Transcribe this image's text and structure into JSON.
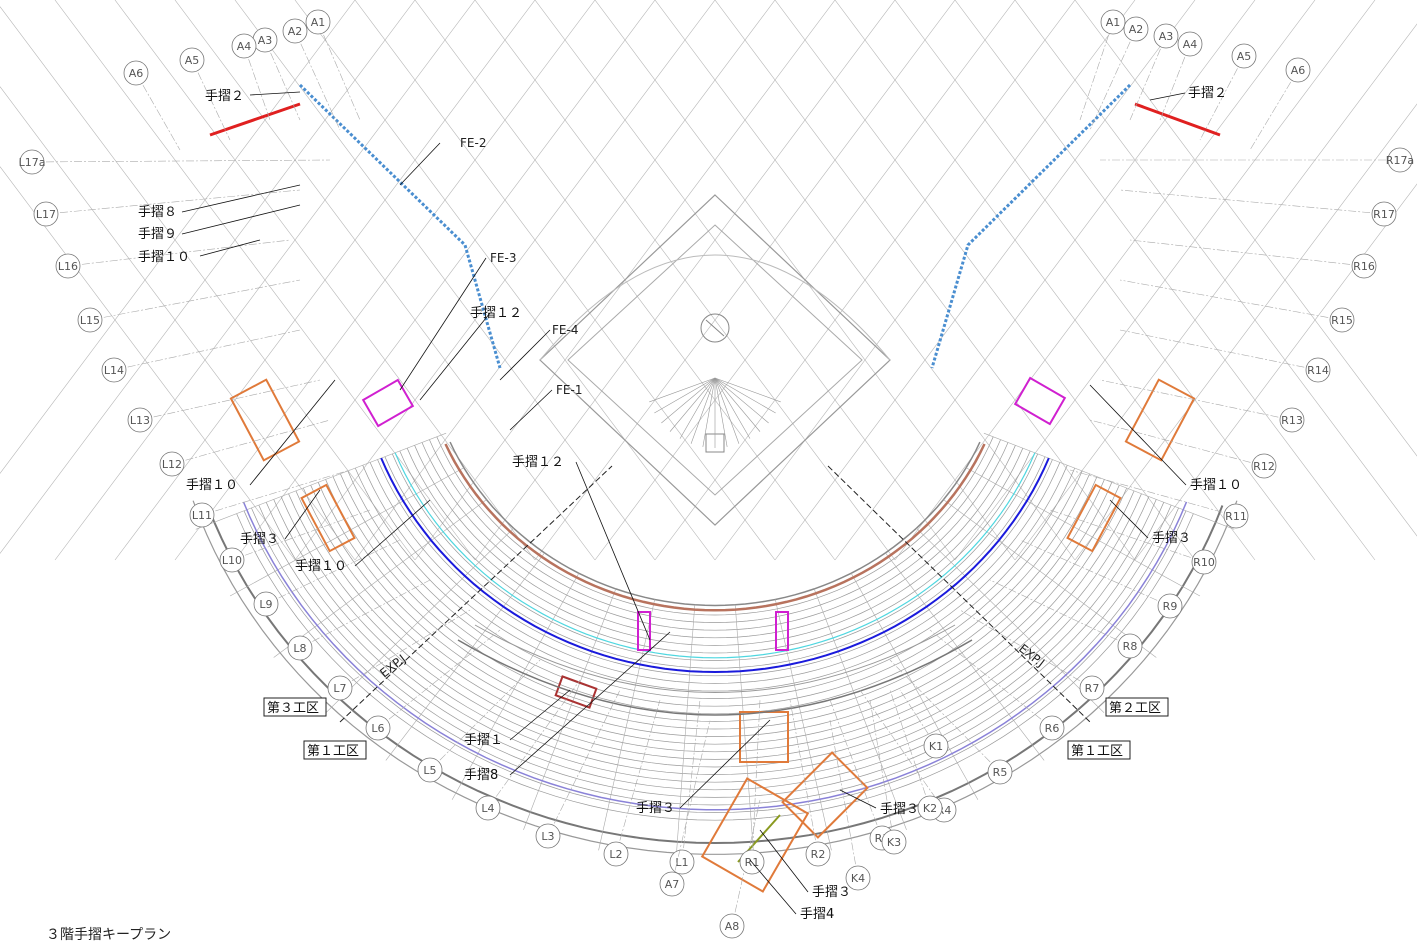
{
  "title": "３階手摺キープラン",
  "colors": {
    "grid": "#b5b5b5",
    "seat": "#9a9a9a",
    "blue_rail": "#1a1adc",
    "cyan_rail": "#4fd7e0",
    "fe2_dashed": "#4a8ed0",
    "fe1_brown": "#b8735e",
    "handrail_red": "#e02020",
    "magenta_box": "#d020d0",
    "stair_orange": "#e07a3a",
    "olive_line": "#8a9a20",
    "lavender_rail": "#8a82d8"
  },
  "grid_left": [
    "A1",
    "A2",
    "A3",
    "A4",
    "A5",
    "A6",
    "L17a",
    "L17",
    "L16",
    "L15",
    "L14",
    "L13",
    "L12",
    "L11",
    "L10",
    "L9",
    "L8",
    "L7",
    "L6",
    "L5",
    "L4",
    "L3",
    "L2",
    "L1",
    "A7",
    "A8"
  ],
  "grid_right": [
    "A1",
    "A2",
    "A3",
    "A4",
    "A5",
    "A6",
    "R17a",
    "R17",
    "R16",
    "R15",
    "R14",
    "R13",
    "R12",
    "R11",
    "R10",
    "R9",
    "R8",
    "R7",
    "R6",
    "R5",
    "R4",
    "R3",
    "R2",
    "R1",
    "K1",
    "K2",
    "K3",
    "K4"
  ],
  "fe_labels": {
    "fe1": "FE-1",
    "fe2": "FE-2",
    "fe3": "FE-3",
    "fe4": "FE-4"
  },
  "handrails": {
    "left_2": "手摺２",
    "right_2": "手摺２",
    "left_8": "手摺８",
    "left_9": "手摺９",
    "left_10_top": "手摺１０",
    "left_12": "手摺１２",
    "center_12": "手摺１２",
    "left_10_mid": "手摺１０",
    "left_3": "手摺３",
    "left_10_low": "手摺１０",
    "right_10": "手摺１０",
    "right_3": "手摺３",
    "bottom_1": "手摺１",
    "bottom_8": "手摺8",
    "bottom_3a": "手摺３",
    "bottom_3b": "手摺３",
    "bottom_3c": "手摺３",
    "bottom_4": "手摺4"
  },
  "zones": {
    "left_3": "第３工区",
    "left_1": "第１工区",
    "right_2": "第２工区",
    "right_1": "第１工区"
  },
  "exp": {
    "left": "EXP.J",
    "right": "EXP.J"
  }
}
